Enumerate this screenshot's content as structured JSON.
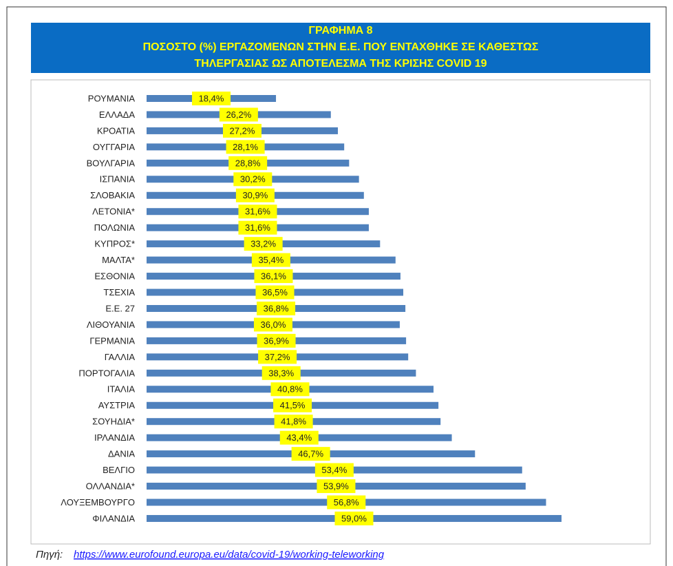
{
  "chart_data": {
    "type": "barh",
    "title": [
      "ΓΡΑΦΗΜΑ 8",
      "ΠΟΣΟΣΤΟ (%) ΕΡΓΑΖΟΜΕΝΩΝ ΣΤΗΝ Ε.Ε. ΠΟΥ ΕΝΤΑΧΘΗΚΕ ΣΕ ΚΑΘΕΣΤΩΣ",
      "ΤΗΛΕΡΓΑΣΙΑΣ ΩΣ ΑΠΟΤΕΛΕΣΜΑ ΤΗΣ ΚΡΙΣΗΣ COVID 19"
    ],
    "categories": [
      "ΡΟΥΜΑΝΙΑ",
      "ΕΛΛΑΔΑ",
      "ΚΡΟΑΤΙΑ",
      "ΟΥΓΓΑΡΙΑ",
      "ΒΟΥΛΓΑΡΙΑ",
      "ΙΣΠΑΝΙΑ",
      "ΣΛΟΒΑΚΙΑ",
      "ΛΕΤΟΝΙΑ*",
      "ΠΟΛΩΝΙΑ",
      "ΚΥΠΡΟΣ*",
      "ΜΑΛΤΑ*",
      "ΕΣΘΟΝΙΑ",
      "ΤΣΕΧΙΑ",
      "Ε.Ε. 27",
      "ΛΙΘΟΥΑΝΙΑ",
      "ΓΕΡΜΑΝΙΑ",
      "ΓΑΛΛΙΑ",
      "ΠΟΡΤΟΓΑΛΙΑ",
      "ΙΤΑΛΙΑ",
      "ΑΥΣΤΡΙΑ",
      "ΣΟΥΗΔΙΑ*",
      "ΙΡΛΑΝΔΙΑ",
      "ΔΑΝΙΑ",
      "ΒΕΛΓΙΟ",
      "ΟΛΛΑΝΔΙΑ*",
      "ΛΟΥΞΕΜΒΟΥΡΓΟ",
      "ΦΙΛΑΝΔΙΑ"
    ],
    "values": [
      18.4,
      26.2,
      27.2,
      28.1,
      28.8,
      30.2,
      30.9,
      31.6,
      31.6,
      33.2,
      35.4,
      36.1,
      36.5,
      36.8,
      36.0,
      36.9,
      37.2,
      38.3,
      40.8,
      41.5,
      41.8,
      43.4,
      46.7,
      53.4,
      53.9,
      56.8,
      59.0
    ],
    "value_labels": [
      "18,4%",
      "26,2%",
      "27,2%",
      "28,1%",
      "28,8%",
      "30,2%",
      "30,9%",
      "31,6%",
      "31,6%",
      "33,2%",
      "35,4%",
      "36,1%",
      "36,5%",
      "36,8%",
      "36,0%",
      "36,9%",
      "37,2%",
      "38,3%",
      "40,8%",
      "41,5%",
      "41,8%",
      "43,4%",
      "46,7%",
      "53,4%",
      "53,9%",
      "56,8%",
      "59,0%"
    ],
    "color": "#4f81bd",
    "source_label": "Πηγή:",
    "source_url": "https://www.eurofound.europa.eu/data/covid-19/working-teleworking"
  }
}
